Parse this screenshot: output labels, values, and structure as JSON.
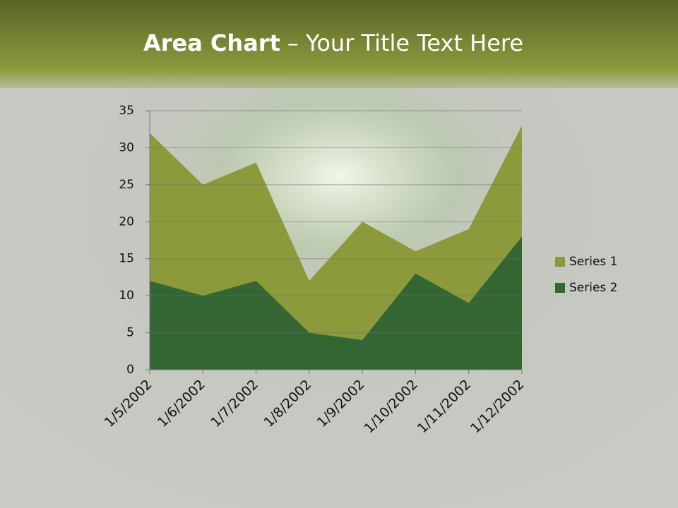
{
  "chart_data": {
    "type": "area",
    "title": [
      "Area Chart",
      "– Your Title Text Here"
    ],
    "categories": [
      "1/5/2002",
      "1/6/2002",
      "1/7/2002",
      "1/8/2002",
      "1/9/2002",
      "1/10/2002",
      "1/11/2002",
      "1/12/2002"
    ],
    "series": [
      {
        "name": "Series 1",
        "color": "#8c9a3b",
        "values": [
          32,
          25,
          28,
          12,
          20,
          16,
          19,
          33
        ]
      },
      {
        "name": "Series 2",
        "color": "#336633",
        "values": [
          12,
          10,
          12,
          5,
          4,
          13,
          9,
          18
        ]
      }
    ],
    "ylim": [
      0,
      35
    ],
    "yticks": [
      0,
      5,
      10,
      15,
      20,
      25,
      30,
      35
    ],
    "grid": true,
    "legend": "right"
  }
}
